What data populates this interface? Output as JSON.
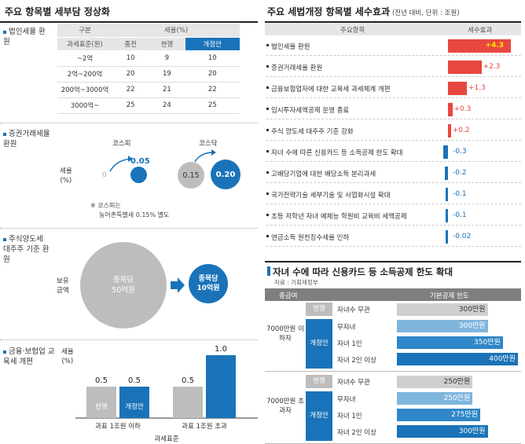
{
  "left": {
    "title": "주요 항목별 세부담 정상화",
    "sec1": {
      "title": "법인세율 환원",
      "head_group": "구분",
      "head_rate": "세율(%)",
      "head_base": "과세표준(원)",
      "cols": [
        "종전",
        "현행",
        "개정안"
      ],
      "rows": [
        {
          "base": "~2억",
          "v": [
            "10",
            "9",
            "10"
          ]
        },
        {
          "base": "2억~200억",
          "v": [
            "20",
            "19",
            "20"
          ]
        },
        {
          "base": "200억~3000억",
          "v": [
            "22",
            "21",
            "22"
          ]
        },
        {
          "base": "3000억~",
          "v": [
            "25",
            "24",
            "25"
          ]
        }
      ]
    },
    "sec2": {
      "title": "증권거래세율 환원",
      "kospi": "코스피",
      "kosdaq": "코스닥",
      "rate_label": "세율",
      "rate_unit": "(%)",
      "kospi_from": "0",
      "kospi_to": "0.05",
      "kosdaq_from": "0.15",
      "kosdaq_to": "0.20",
      "note_line1": "※ 코스피는",
      "note_line2": "농어촌특별세 0.15% 별도"
    },
    "sec3": {
      "title": "주식양도세 대주주 기준 환원",
      "holding": "보유 금액",
      "big_circle_l1": "종목당",
      "big_circle_l2": "50억원",
      "small_circle_l1": "종목당",
      "small_circle_l2": "10억원"
    },
    "sec4": {
      "title": "금융·보험업 교육세 개편",
      "ylabel": "세율",
      "yunit": "(%)",
      "xlabel": "과세표준",
      "groups": [
        "과표 1조원 이하",
        "과표 1조원 초과"
      ],
      "series": [
        "현행",
        "개정안"
      ],
      "values": [
        [
          0.5,
          0.5
        ],
        [
          0.5,
          1.0
        ]
      ],
      "value_labels": [
        [
          "0.5",
          "0.5"
        ],
        [
          "0.5",
          "1.0"
        ]
      ]
    }
  },
  "right": {
    "title": "주요 세법개정 항목별 세수효과",
    "subtitle": "(전년 대비, 단위 : 조원)",
    "col_item": "주요항목",
    "col_effect": "세수효과",
    "items": [
      {
        "label": "법인세율 환원",
        "value": 4.3,
        "text": "+4.3"
      },
      {
        "label": "증권거래세율 환원",
        "value": 2.3,
        "text": "+2.3"
      },
      {
        "label": "금융보험업자에 대한 교육세 과세체계 개편",
        "value": 1.3,
        "text": "+1.3"
      },
      {
        "label": "임시투자세액공제 운영 종료",
        "value": 0.3,
        "text": "+0.3"
      },
      {
        "label": "주식 양도세 대주주 기준 강화",
        "value": 0.2,
        "text": "+0.2"
      },
      {
        "label": "자녀 수에 따른 신용카드 등 소득공제 한도 확대",
        "value": -0.3,
        "text": "-0.3"
      },
      {
        "label": "고배당기업에 대한 배당소득 분리과세",
        "value": -0.2,
        "text": "-0.2"
      },
      {
        "label": "국가전략기술 세부기술 및 사업화시설 확대",
        "value": -0.1,
        "text": "-0.1"
      },
      {
        "label": "초등 저학년 자녀 예체능 학원비 교육비 세액공제",
        "value": -0.1,
        "text": "-0.1"
      },
      {
        "label": "연금소득 원천징수세율 인하",
        "value": -0.02,
        "text": "-0.02"
      }
    ],
    "card": {
      "title": "자녀 수에 따라 신용카드 등 소득공제 한도 확대",
      "source": "자료 : 기획재정부",
      "col1": "총급여",
      "col2": "기본공제 한도",
      "groups": [
        {
          "name": "7000만원 이하자",
          "current_label": "현행",
          "proposed_label": "개정안",
          "current": {
            "label": "자녀수 무관",
            "value": 300,
            "text": "300만원"
          },
          "proposed": [
            {
              "label": "무자녀",
              "value": 300,
              "text": "300만원"
            },
            {
              "label": "자녀 1인",
              "value": 350,
              "text": "350만원"
            },
            {
              "label": "자녀 2인 이상",
              "value": 400,
              "text": "400만원"
            }
          ]
        },
        {
          "name": "7000만원 초과자",
          "current_label": "현행",
          "proposed_label": "개정안",
          "current": {
            "label": "자녀수 무관",
            "value": 250,
            "text": "250만원"
          },
          "proposed": [
            {
              "label": "무자녀",
              "value": 250,
              "text": "250만원"
            },
            {
              "label": "자녀 1인",
              "value": 275,
              "text": "275만원"
            },
            {
              "label": "자녀 2인 이상",
              "value": 300,
              "text": "300만원"
            }
          ]
        }
      ]
    }
  },
  "colors": {
    "blue": "#1a73b8",
    "red": "#e8473f",
    "gray": "#bdbdbd",
    "darkgray": "#7f7f7f"
  }
}
